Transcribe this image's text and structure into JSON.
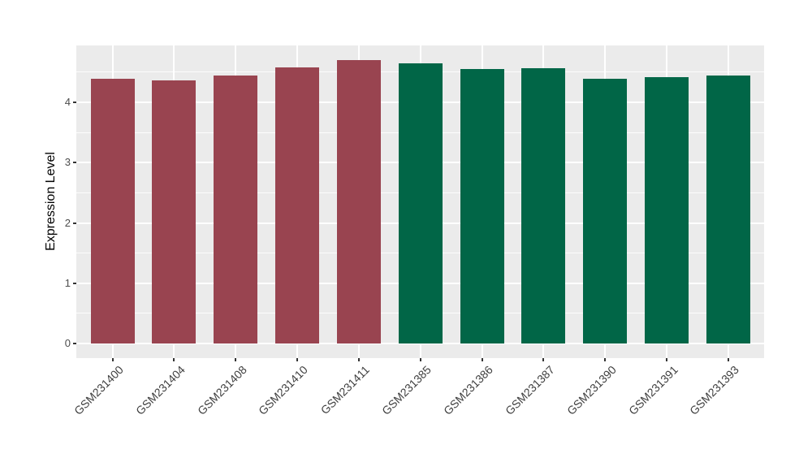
{
  "figure": {
    "background_color": "#FFFFFF"
  },
  "chart_data": {
    "type": "bar",
    "title": "",
    "xlabel": "",
    "ylabel": "Expression Level",
    "categories": [
      "GSM231400",
      "GSM231404",
      "GSM231408",
      "GSM231410",
      "GSM231411",
      "GSM231385",
      "GSM231386",
      "GSM231387",
      "GSM231390",
      "GSM231391",
      "GSM231393"
    ],
    "values": [
      4.39,
      4.36,
      4.44,
      4.58,
      4.7,
      4.65,
      4.55,
      4.57,
      4.39,
      4.42,
      4.45
    ],
    "bar_colors": [
      "#994450",
      "#994450",
      "#994450",
      "#994450",
      "#994450",
      "#016647",
      "#016647",
      "#016647",
      "#016647",
      "#016647",
      "#016647"
    ],
    "color_groups": [
      {
        "color": "#994450",
        "categories": [
          "GSM231400",
          "GSM231404",
          "GSM231408",
          "GSM231410",
          "GSM231411"
        ]
      },
      {
        "color": "#016647",
        "categories": [
          "GSM231385",
          "GSM231386",
          "GSM231387",
          "GSM231390",
          "GSM231391",
          "GSM231393"
        ]
      }
    ],
    "yticks": [
      0,
      1,
      2,
      3,
      4
    ],
    "yticks_minor": [
      0.5,
      1.5,
      2.5,
      3.5,
      4.5
    ],
    "ylim": [
      -0.24,
      4.94
    ],
    "x_tick_rotation_deg": 45,
    "legend": "none",
    "grid": "on",
    "panel_background": "#EBEBEB",
    "gridline_color": "#FFFFFF",
    "tick_label_color": "#4D4D4D"
  }
}
